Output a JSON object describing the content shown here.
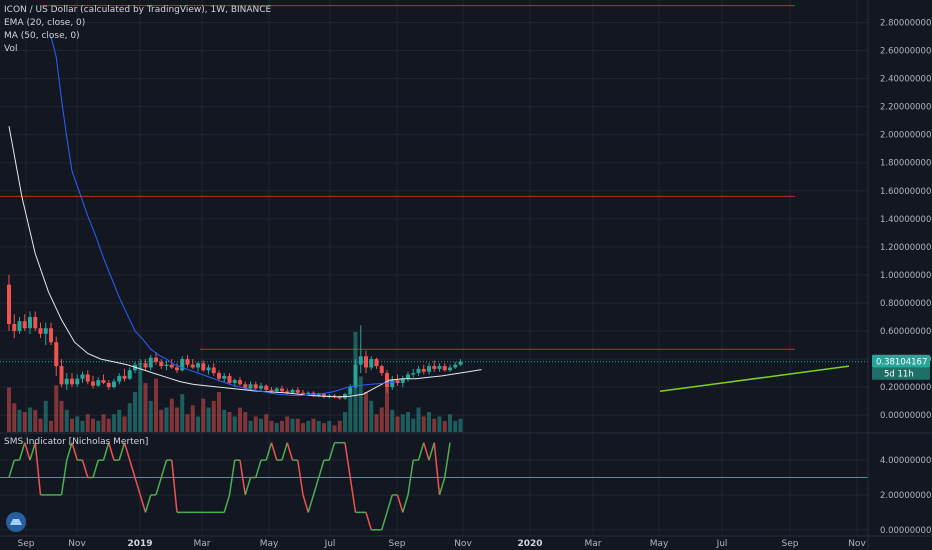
{
  "legend": {
    "title": "ICON / US Dollar (calculated by TradingView), 1W, BINANCE",
    "ema": "EMA (20, close, 0)",
    "ma": "MA (50, close, 0)",
    "vol": "Vol"
  },
  "indicator_label": "SMS Indicator [Nicholas Merten]",
  "colors": {
    "background": "#131722",
    "up": "#26a69a",
    "down": "#ef5350",
    "ema": "#e8e8e8",
    "ma": "#2962ff",
    "level": "#c62828",
    "trend": "#7ed321",
    "sms_up": "#4caf50",
    "sms_down": "#ef5350",
    "sms_ref": "#26a69a"
  },
  "chart_data": {
    "type": "line",
    "x_ticks": [
      "Sep",
      "Nov",
      "2019",
      "Mar",
      "May",
      "Jul",
      "Sep",
      "Nov",
      "2020",
      "Mar",
      "May",
      "Jul",
      "Sep",
      "Nov"
    ],
    "price_axis": {
      "ylim": [
        -0.12,
        2.96
      ],
      "ticks": [
        "2.80000000",
        "2.60000000",
        "2.40000000",
        "2.20000000",
        "2.00000000",
        "1.80000000",
        "1.60000000",
        "1.40000000",
        "1.20000000",
        "1.00000000",
        "0.80000000",
        "0.60000000",
        "0.40000000",
        "0.20000000",
        "0.00000000"
      ],
      "tick_values": [
        2.8,
        2.6,
        2.4,
        2.2,
        2.0,
        1.8,
        1.6,
        1.4,
        1.2,
        1.0,
        0.8,
        0.6,
        0.4,
        0.2,
        0.0
      ]
    },
    "last_price": "0.38104167",
    "countdown": "5d 11h",
    "horizontal_levels": [
      2.92,
      1.56,
      0.47
    ],
    "ohlc": [
      [
        0.93,
        1.0,
        0.6,
        0.65
      ],
      [
        0.65,
        0.72,
        0.55,
        0.6
      ],
      [
        0.6,
        0.7,
        0.58,
        0.67
      ],
      [
        0.67,
        0.72,
        0.6,
        0.62
      ],
      [
        0.62,
        0.74,
        0.58,
        0.7
      ],
      [
        0.7,
        0.74,
        0.6,
        0.62
      ],
      [
        0.62,
        0.66,
        0.55,
        0.58
      ],
      [
        0.58,
        0.66,
        0.5,
        0.62
      ],
      [
        0.62,
        0.66,
        0.5,
        0.52
      ],
      [
        0.52,
        0.56,
        0.28,
        0.35
      ],
      [
        0.35,
        0.4,
        0.2,
        0.22
      ],
      [
        0.22,
        0.3,
        0.18,
        0.26
      ],
      [
        0.26,
        0.3,
        0.2,
        0.22
      ],
      [
        0.22,
        0.29,
        0.2,
        0.26
      ],
      [
        0.26,
        0.31,
        0.23,
        0.29
      ],
      [
        0.29,
        0.32,
        0.22,
        0.24
      ],
      [
        0.24,
        0.28,
        0.19,
        0.21
      ],
      [
        0.21,
        0.27,
        0.2,
        0.25
      ],
      [
        0.25,
        0.29,
        0.22,
        0.23
      ],
      [
        0.23,
        0.25,
        0.18,
        0.2
      ],
      [
        0.2,
        0.26,
        0.19,
        0.24
      ],
      [
        0.24,
        0.3,
        0.22,
        0.28
      ],
      [
        0.28,
        0.33,
        0.24,
        0.26
      ],
      [
        0.26,
        0.34,
        0.25,
        0.32
      ],
      [
        0.32,
        0.38,
        0.3,
        0.36
      ],
      [
        0.36,
        0.4,
        0.33,
        0.37
      ],
      [
        0.37,
        0.4,
        0.32,
        0.34
      ],
      [
        0.34,
        0.43,
        0.32,
        0.41
      ],
      [
        0.41,
        0.45,
        0.36,
        0.38
      ],
      [
        0.38,
        0.4,
        0.33,
        0.35
      ],
      [
        0.35,
        0.39,
        0.32,
        0.36
      ],
      [
        0.36,
        0.4,
        0.33,
        0.34
      ],
      [
        0.34,
        0.37,
        0.3,
        0.32
      ],
      [
        0.32,
        0.42,
        0.31,
        0.4
      ],
      [
        0.4,
        0.43,
        0.34,
        0.36
      ],
      [
        0.36,
        0.4,
        0.33,
        0.34
      ],
      [
        0.34,
        0.38,
        0.31,
        0.37
      ],
      [
        0.37,
        0.39,
        0.31,
        0.32
      ],
      [
        0.32,
        0.36,
        0.29,
        0.34
      ],
      [
        0.34,
        0.37,
        0.28,
        0.3
      ],
      [
        0.3,
        0.32,
        0.24,
        0.26
      ],
      [
        0.26,
        0.3,
        0.23,
        0.28
      ],
      [
        0.28,
        0.3,
        0.22,
        0.23
      ],
      [
        0.23,
        0.26,
        0.2,
        0.25
      ],
      [
        0.25,
        0.27,
        0.21,
        0.22
      ],
      [
        0.22,
        0.24,
        0.18,
        0.19
      ],
      [
        0.19,
        0.24,
        0.18,
        0.22
      ],
      [
        0.22,
        0.24,
        0.18,
        0.19
      ],
      [
        0.19,
        0.23,
        0.17,
        0.21
      ],
      [
        0.21,
        0.22,
        0.17,
        0.18
      ],
      [
        0.18,
        0.2,
        0.16,
        0.17
      ],
      [
        0.17,
        0.2,
        0.16,
        0.19
      ],
      [
        0.19,
        0.21,
        0.16,
        0.17
      ],
      [
        0.17,
        0.19,
        0.15,
        0.16
      ],
      [
        0.16,
        0.19,
        0.15,
        0.18
      ],
      [
        0.18,
        0.2,
        0.15,
        0.16
      ],
      [
        0.16,
        0.18,
        0.14,
        0.15
      ],
      [
        0.15,
        0.17,
        0.14,
        0.16
      ],
      [
        0.16,
        0.17,
        0.13,
        0.14
      ],
      [
        0.14,
        0.16,
        0.13,
        0.15
      ],
      [
        0.15,
        0.16,
        0.12,
        0.13
      ],
      [
        0.13,
        0.15,
        0.12,
        0.14
      ],
      [
        0.14,
        0.15,
        0.12,
        0.13
      ],
      [
        0.13,
        0.14,
        0.11,
        0.12
      ],
      [
        0.12,
        0.16,
        0.11,
        0.15
      ],
      [
        0.15,
        0.22,
        0.14,
        0.2
      ],
      [
        0.2,
        0.4,
        0.19,
        0.36
      ],
      [
        0.36,
        0.64,
        0.3,
        0.42
      ],
      [
        0.42,
        0.46,
        0.3,
        0.34
      ],
      [
        0.34,
        0.42,
        0.32,
        0.4
      ],
      [
        0.4,
        0.41,
        0.33,
        0.35
      ],
      [
        0.35,
        0.36,
        0.28,
        0.3
      ],
      [
        0.3,
        0.32,
        0.16,
        0.2
      ],
      [
        0.2,
        0.28,
        0.18,
        0.25
      ],
      [
        0.25,
        0.29,
        0.21,
        0.23
      ],
      [
        0.23,
        0.28,
        0.2,
        0.26
      ],
      [
        0.26,
        0.31,
        0.24,
        0.29
      ],
      [
        0.29,
        0.33,
        0.27,
        0.3
      ],
      [
        0.3,
        0.35,
        0.28,
        0.33
      ],
      [
        0.33,
        0.36,
        0.29,
        0.31
      ],
      [
        0.31,
        0.37,
        0.29,
        0.35
      ],
      [
        0.35,
        0.39,
        0.31,
        0.33
      ],
      [
        0.33,
        0.37,
        0.31,
        0.35
      ],
      [
        0.35,
        0.37,
        0.31,
        0.32
      ],
      [
        0.32,
        0.36,
        0.31,
        0.34
      ],
      [
        0.34,
        0.38,
        0.33,
        0.36
      ],
      [
        0.36,
        0.4,
        0.35,
        0.38
      ]
    ],
    "volume": [
      40,
      26,
      20,
      18,
      22,
      20,
      12,
      28,
      10,
      42,
      28,
      20,
      12,
      14,
      10,
      16,
      12,
      10,
      16,
      12,
      16,
      20,
      14,
      26,
      36,
      60,
      44,
      28,
      48,
      20,
      22,
      30,
      22,
      34,
      16,
      24,
      14,
      30,
      22,
      28,
      36,
      20,
      18,
      14,
      22,
      18,
      10,
      14,
      12,
      16,
      10,
      8,
      10,
      14,
      12,
      12,
      8,
      10,
      12,
      10,
      8,
      10,
      6,
      10,
      18,
      34,
      90,
      50,
      36,
      28,
      16,
      22,
      40,
      20,
      14,
      16,
      18,
      12,
      22,
      14,
      18,
      12,
      14,
      10,
      16,
      10,
      12
    ],
    "ema": [
      [
        0,
        2.06
      ],
      [
        5,
        1.55
      ],
      [
        10,
        1.15
      ],
      [
        15,
        0.88
      ],
      [
        20,
        0.68
      ],
      [
        25,
        0.52
      ],
      [
        30,
        0.44
      ],
      [
        35,
        0.4
      ],
      [
        40,
        0.38
      ],
      [
        45,
        0.36
      ],
      [
        50,
        0.33
      ],
      [
        55,
        0.3
      ],
      [
        60,
        0.27
      ],
      [
        65,
        0.24
      ],
      [
        70,
        0.22
      ],
      [
        75,
        0.21
      ],
      [
        80,
        0.2
      ],
      [
        85,
        0.19
      ],
      [
        90,
        0.18
      ],
      [
        95,
        0.17
      ],
      [
        100,
        0.165
      ],
      [
        105,
        0.16
      ],
      [
        110,
        0.15
      ],
      [
        115,
        0.14
      ],
      [
        120,
        0.135
      ],
      [
        125,
        0.13
      ],
      [
        130,
        0.135
      ],
      [
        135,
        0.15
      ],
      [
        140,
        0.2
      ],
      [
        145,
        0.25
      ],
      [
        150,
        0.26
      ],
      [
        155,
        0.26
      ],
      [
        160,
        0.27
      ],
      [
        165,
        0.28
      ],
      [
        170,
        0.295
      ],
      [
        175,
        0.31
      ],
      [
        180,
        0.325
      ]
    ],
    "ma": [
      [
        16,
        2.7
      ],
      [
        18,
        2.55
      ],
      [
        20,
        2.25
      ],
      [
        22,
        1.98
      ],
      [
        24,
        1.74
      ],
      [
        27,
        1.58
      ],
      [
        30,
        1.42
      ],
      [
        33,
        1.28
      ],
      [
        36,
        1.12
      ],
      [
        39,
        0.98
      ],
      [
        42,
        0.84
      ],
      [
        45,
        0.72
      ],
      [
        48,
        0.6
      ],
      [
        51,
        0.54
      ],
      [
        54,
        0.47
      ],
      [
        57,
        0.43
      ],
      [
        60,
        0.4
      ],
      [
        63,
        0.36
      ],
      [
        66,
        0.34
      ],
      [
        69,
        0.32
      ],
      [
        72,
        0.3
      ],
      [
        75,
        0.28
      ],
      [
        78,
        0.26
      ],
      [
        81,
        0.24
      ],
      [
        84,
        0.22
      ],
      [
        87,
        0.205
      ],
      [
        90,
        0.19
      ],
      [
        93,
        0.18
      ],
      [
        96,
        0.17
      ],
      [
        99,
        0.16
      ],
      [
        102,
        0.15
      ],
      [
        105,
        0.145
      ],
      [
        108,
        0.14
      ],
      [
        111,
        0.14
      ],
      [
        114,
        0.145
      ],
      [
        117,
        0.15
      ],
      [
        120,
        0.155
      ],
      [
        123,
        0.165
      ],
      [
        126,
        0.18
      ],
      [
        129,
        0.2
      ],
      [
        132,
        0.21
      ],
      [
        135,
        0.215
      ],
      [
        138,
        0.22
      ],
      [
        141,
        0.225
      ],
      [
        144,
        0.23
      ],
      [
        147,
        0.235
      ]
    ],
    "trendline": [
      [
        124,
        0.17
      ],
      [
        160,
        0.35
      ]
    ],
    "sms": {
      "ylim": [
        -0.3,
        5.5
      ],
      "ticks": [
        "4.00000000",
        "2.00000000",
        "0.00000000"
      ],
      "tick_values": [
        4,
        2,
        0
      ],
      "reference": 3,
      "values": [
        3,
        4,
        4,
        5,
        4,
        5,
        2,
        2,
        2,
        2,
        2,
        4,
        5,
        4,
        4,
        3,
        3,
        4,
        4,
        5,
        4,
        4,
        5,
        4,
        3,
        2,
        1,
        2,
        2,
        3,
        4,
        4,
        1,
        1,
        1,
        1,
        1,
        1,
        1,
        1,
        1,
        1,
        2,
        4,
        4,
        2,
        3,
        3,
        4,
        4,
        5,
        4,
        4,
        5,
        4,
        4,
        2,
        1,
        2,
        3,
        4,
        4,
        5,
        5,
        5,
        3,
        1,
        1,
        1,
        0,
        0,
        0,
        1,
        2,
        2,
        1,
        2,
        4,
        4,
        5,
        4,
        5,
        2,
        3,
        5
      ]
    }
  }
}
